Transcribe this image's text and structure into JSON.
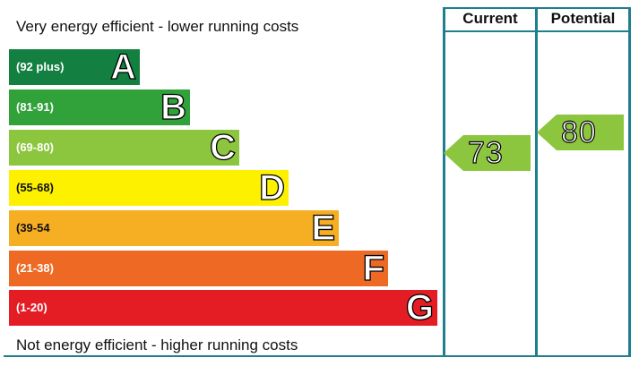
{
  "top_caption": "Very energy efficient - lower running costs",
  "bottom_caption": "Not energy efficient - higher running costs",
  "columns": {
    "current": "Current",
    "potential": "Potential"
  },
  "bands": [
    {
      "range": "(92 plus)",
      "letter": "A",
      "color": "#138041"
    },
    {
      "range": "(81-91)",
      "letter": "B",
      "color": "#31a13a"
    },
    {
      "range": "(69-80)",
      "letter": "C",
      "color": "#8cc63f"
    },
    {
      "range": "(55-68)",
      "letter": "D",
      "color": "#fdf100"
    },
    {
      "range": "(39-54",
      "letter": "E",
      "color": "#f6ae22"
    },
    {
      "range": "(21-38)",
      "letter": "F",
      "color": "#ee6a24"
    },
    {
      "range": "(1-20)",
      "letter": "G",
      "color": "#e41d25"
    }
  ],
  "current_rating": {
    "value": "73",
    "band": "C",
    "color": "#8cc63f"
  },
  "potential_rating": {
    "value": "80",
    "band": "C",
    "color": "#8cc63f"
  },
  "frame_color": "#1f7f8e"
}
